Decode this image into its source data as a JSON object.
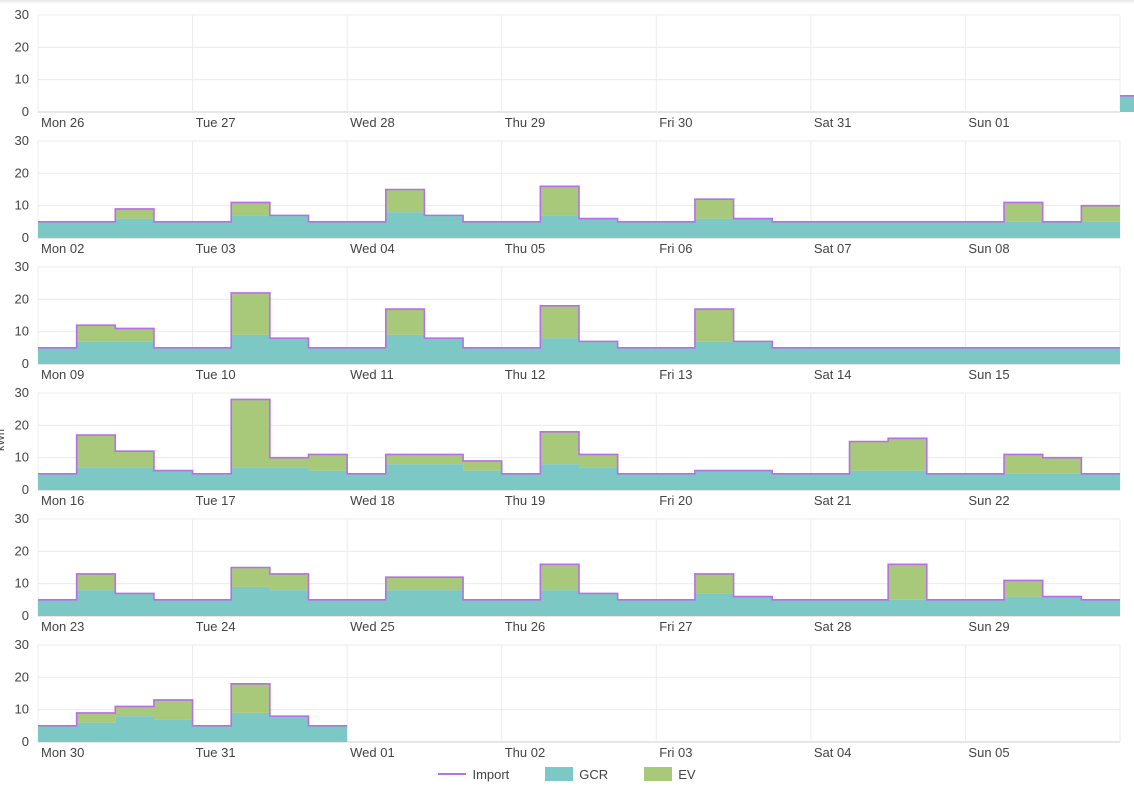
{
  "chart_data": {
    "type": "area",
    "ylabel": "kWh",
    "y_ticks": [
      "0",
      "10",
      "20",
      "30"
    ],
    "ylim": [
      0,
      30
    ],
    "stacked": true,
    "colors": {
      "import": "#b86ee8",
      "gcr": "#7cc8c4",
      "ev": "#a8c97a"
    },
    "legend": [
      "Import",
      "GCR",
      "EV"
    ],
    "legend_position": "bottom-center",
    "grid": true,
    "rows": [
      {
        "days": [
          "Mon 26",
          "Tue 27",
          "Wed 28",
          "Thu 29",
          "Fri 30",
          "Sat 31",
          "Sun 01"
        ],
        "gcr": [
          null,
          null,
          null,
          null,
          null,
          null,
          null,
          null,
          null,
          null,
          null,
          null,
          null,
          null,
          null,
          null,
          null,
          null,
          null,
          null,
          null,
          null,
          null,
          null,
          null,
          null,
          null,
          null,
          5,
          5,
          5,
          5
        ],
        "ev": [
          null,
          null,
          null,
          null,
          null,
          null,
          null,
          null,
          null,
          null,
          null,
          null,
          null,
          null,
          null,
          null,
          null,
          null,
          null,
          null,
          null,
          null,
          null,
          null,
          null,
          null,
          null,
          null,
          0,
          0,
          0,
          0
        ]
      },
      {
        "days": [
          "Mon 02",
          "Tue 03",
          "Wed 04",
          "Thu 05",
          "Fri 06",
          "Sat 07",
          "Sun 08"
        ],
        "gcr": [
          5,
          5,
          6,
          5,
          5,
          7,
          7,
          5,
          5,
          8,
          7,
          5,
          5,
          7,
          6,
          5,
          5,
          6,
          6,
          5,
          5,
          5,
          5,
          5,
          5,
          5,
          5,
          5
        ],
        "ev": [
          0,
          0,
          3,
          0,
          0,
          4,
          0,
          0,
          0,
          7,
          0,
          0,
          0,
          9,
          0,
          0,
          0,
          6,
          0,
          0,
          0,
          0,
          0,
          0,
          0,
          6,
          0,
          5
        ]
      },
      {
        "days": [
          "Mon 09",
          "Tue 10",
          "Wed 11",
          "Thu 12",
          "Fri 13",
          "Sat 14",
          "Sun 15"
        ],
        "gcr": [
          5,
          7,
          7,
          5,
          5,
          9,
          8,
          5,
          5,
          9,
          8,
          5,
          5,
          8,
          7,
          5,
          5,
          7,
          7,
          5,
          5,
          5,
          5,
          5,
          5,
          5,
          5,
          5
        ],
        "ev": [
          0,
          5,
          4,
          0,
          0,
          13,
          0,
          0,
          0,
          8,
          0,
          0,
          0,
          10,
          0,
          0,
          0,
          10,
          0,
          0,
          0,
          0,
          0,
          0,
          0,
          0,
          0,
          0
        ]
      },
      {
        "days": [
          "Mon 16",
          "Tue 17",
          "Wed 18",
          "Thu 19",
          "Fri 20",
          "Sat 21",
          "Sun 22"
        ],
        "gcr": [
          5,
          7,
          7,
          6,
          5,
          7,
          7,
          6,
          5,
          8,
          8,
          6,
          5,
          8,
          7,
          5,
          5,
          6,
          6,
          5,
          5,
          6,
          6,
          5,
          5,
          5,
          5,
          5
        ],
        "ev": [
          0,
          10,
          5,
          0,
          0,
          21,
          3,
          5,
          0,
          3,
          3,
          3,
          0,
          10,
          4,
          0,
          0,
          0,
          0,
          0,
          0,
          9,
          10,
          0,
          0,
          6,
          5,
          0
        ]
      },
      {
        "days": [
          "Mon 23",
          "Tue 24",
          "Wed 25",
          "Thu 26",
          "Fri 27",
          "Sat 28",
          "Sun 29"
        ],
        "gcr": [
          5,
          8,
          7,
          5,
          5,
          9,
          8,
          5,
          5,
          8,
          8,
          5,
          5,
          8,
          7,
          5,
          5,
          7,
          6,
          5,
          5,
          5,
          5,
          5,
          5,
          6,
          6,
          5
        ],
        "ev": [
          0,
          5,
          0,
          0,
          0,
          6,
          5,
          0,
          0,
          4,
          4,
          0,
          0,
          8,
          0,
          0,
          0,
          6,
          0,
          0,
          0,
          0,
          11,
          0,
          0,
          5,
          0,
          0
        ]
      },
      {
        "days": [
          "Mon 30",
          "Tue 31",
          "Wed 01",
          "Thu 02",
          "Fri 03",
          "Sat 04",
          "Sun 05"
        ],
        "gcr": [
          5,
          6,
          8,
          7,
          5,
          9,
          8,
          5
        ],
        "ev": [
          0,
          3,
          3,
          6,
          0,
          9,
          0,
          0
        ]
      }
    ]
  }
}
